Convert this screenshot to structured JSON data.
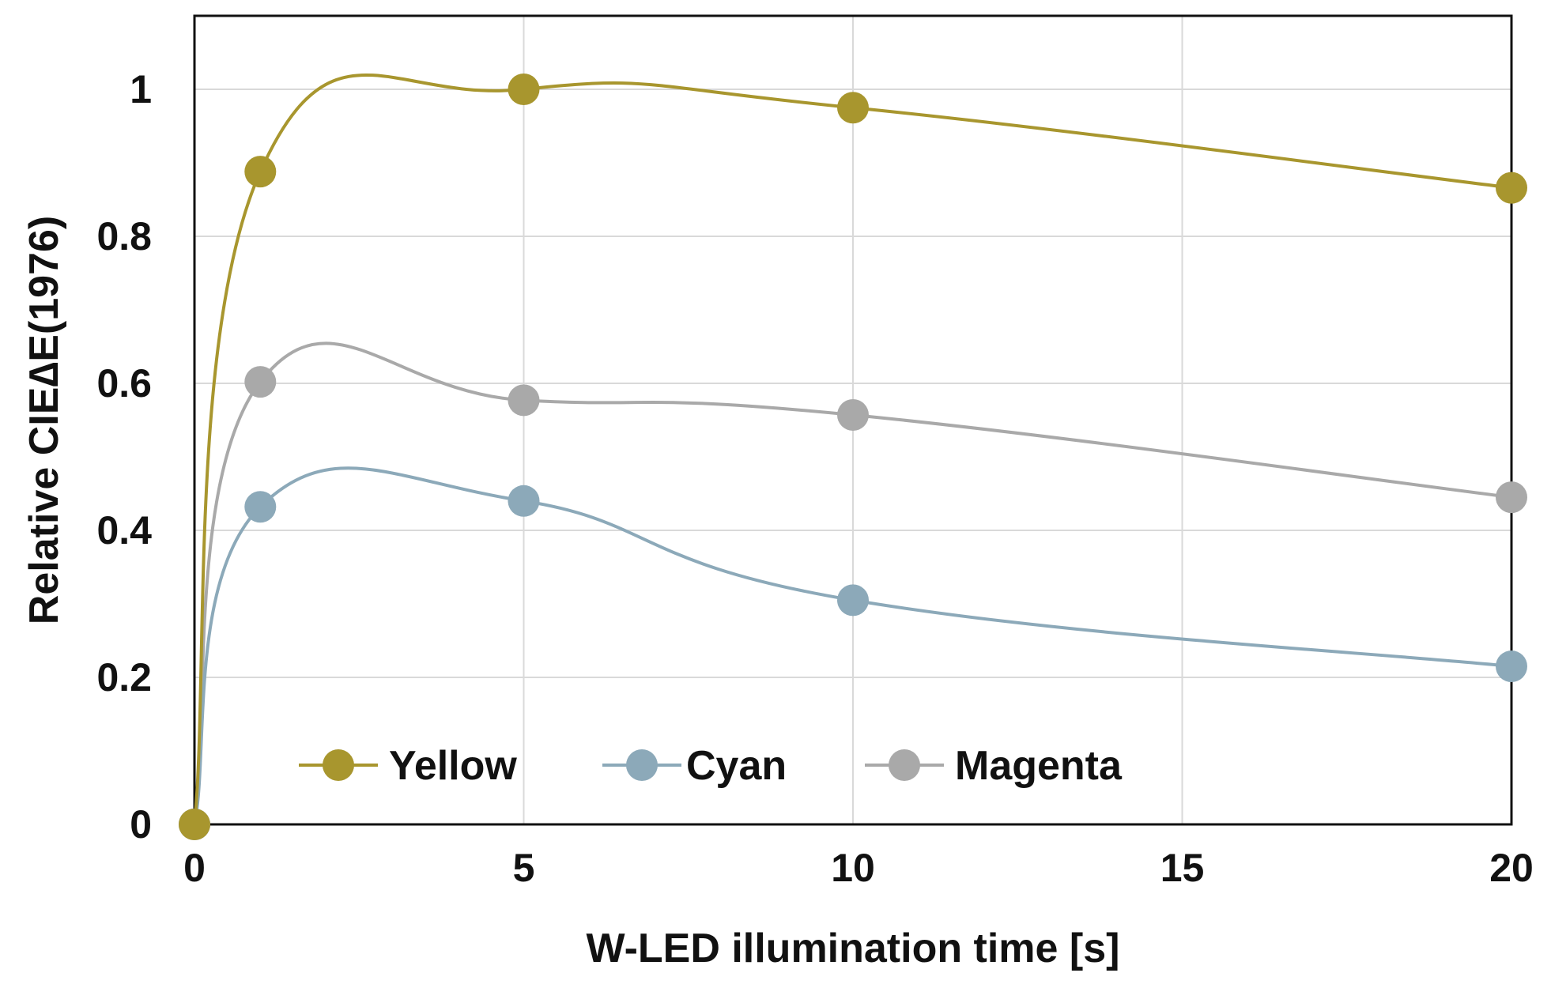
{
  "chart_data": {
    "type": "line",
    "title": "",
    "xlabel": "W-LED illumination time [s]",
    "ylabel": "Relative CIE∆E(1976)",
    "xlim": [
      0,
      20
    ],
    "ylim": [
      0,
      1.1
    ],
    "xticks": [
      0,
      5,
      10,
      15,
      20
    ],
    "yticks": [
      0,
      0.2,
      0.4,
      0.6,
      0.8,
      1
    ],
    "xtick_labels": [
      "0",
      "5",
      "10",
      "15",
      "20"
    ],
    "ytick_labels": [
      "0",
      "0.2",
      "0.4",
      "0.6",
      "0.8",
      "1"
    ],
    "grid": true,
    "smooth": true,
    "legend_position": "bottom-left-inside",
    "x": [
      0,
      1,
      5,
      10,
      20
    ],
    "series": [
      {
        "name": "Yellow",
        "color": "#a8962e",
        "values": [
          0,
          0.888,
          1.0,
          0.975,
          0.866
        ]
      },
      {
        "name": "Cyan",
        "color": "#8ca9b9",
        "values": [
          0,
          0.432,
          0.44,
          0.305,
          0.215
        ]
      },
      {
        "name": "Magenta",
        "color": "#a9a9a9",
        "values": [
          0,
          0.602,
          0.577,
          0.557,
          0.445
        ]
      }
    ]
  }
}
